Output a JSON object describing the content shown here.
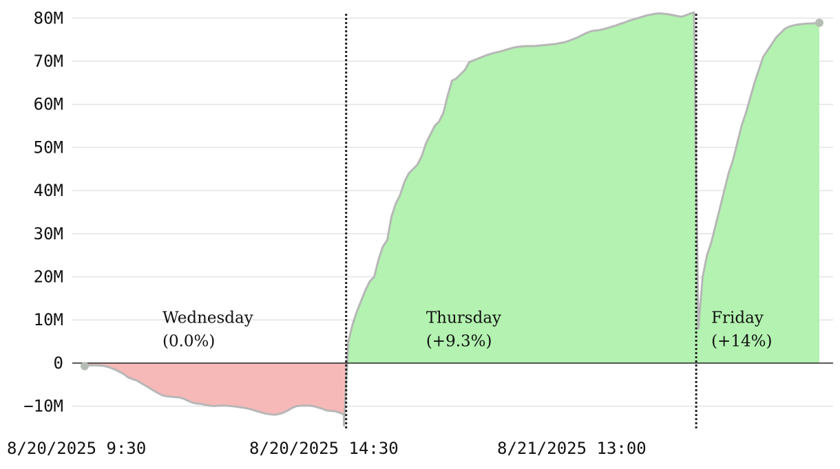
{
  "chart_data": {
    "type": "area",
    "ylim": [
      -15000000,
      81000000
    ],
    "y_ticks": [
      {
        "value": 80000000,
        "label": "80M"
      },
      {
        "value": 70000000,
        "label": "70M"
      },
      {
        "value": 60000000,
        "label": "60M"
      },
      {
        "value": 50000000,
        "label": "50M"
      },
      {
        "value": 40000000,
        "label": "40M"
      },
      {
        "value": 30000000,
        "label": "30M"
      },
      {
        "value": 20000000,
        "label": "20M"
      },
      {
        "value": 10000000,
        "label": "10M"
      },
      {
        "value": 0,
        "label": "0"
      },
      {
        "value": -10000000,
        "label": "−10M"
      }
    ],
    "x_ticks": [
      {
        "index": 0,
        "label": "8/20/2025 9:30"
      },
      {
        "index": 61,
        "label": "8/20/2025 14:30"
      },
      {
        "index": 100,
        "label": "8/21/2025 13:00"
      }
    ],
    "colors": {
      "positive": "#b3f2b0",
      "negative": "#f7b8b8",
      "line": "#b7b7b7",
      "endpoint": "#b4bdb2"
    },
    "segments": [
      {
        "label": "Wednesday",
        "change": "(0.0%)",
        "x": [
          0,
          2,
          3,
          4,
          5,
          6,
          7,
          8,
          9,
          10,
          11,
          12,
          13,
          14,
          15,
          16,
          17,
          18,
          19,
          20,
          21,
          22,
          23,
          24,
          25,
          26,
          27,
          28,
          29,
          30,
          31,
          32,
          33,
          34,
          35,
          36,
          37,
          38,
          39,
          40,
          41,
          42,
          43,
          44,
          45,
          46,
          47,
          48,
          49,
          50,
          51,
          52,
          53,
          54,
          55,
          56,
          57,
          58,
          59,
          60
        ],
        "y": [
          -600000,
          -500000,
          -550000,
          -600000,
          -800000,
          -1100000,
          -1500000,
          -2000000,
          -2500000,
          -3300000,
          -3700000,
          -4000000,
          -4600000,
          -5200000,
          -5800000,
          -6400000,
          -7000000,
          -7500000,
          -7700000,
          -7800000,
          -7900000,
          -8000000,
          -8300000,
          -8800000,
          -9200000,
          -9400000,
          -9500000,
          -9700000,
          -9900000,
          -9950000,
          -9900000,
          -9850000,
          -9900000,
          -10000000,
          -10100000,
          -10250000,
          -10400000,
          -10600000,
          -10900000,
          -11200000,
          -11500000,
          -11750000,
          -11900000,
          -12000000,
          -11800000,
          -11500000,
          -11000000,
          -10400000,
          -10000000,
          -9900000,
          -9850000,
          -9900000,
          -10000000,
          -10300000,
          -10600000,
          -11000000,
          -11100000,
          -11200000,
          -11500000,
          -12000000
        ],
        "label_anchor_x": 18,
        "label_anchor_y": 9000000
      },
      {
        "label": "Thursday",
        "change": "(+9.3%)",
        "x": [
          60,
          61,
          62,
          63,
          64,
          65,
          66,
          67,
          68,
          69,
          70,
          71,
          72,
          73,
          74,
          75,
          76,
          77,
          78,
          79,
          80,
          81,
          82,
          83,
          84,
          85,
          86,
          87,
          88,
          89,
          90,
          91,
          92,
          93,
          94,
          95,
          96,
          97,
          98,
          99,
          100,
          101,
          102,
          103,
          104,
          105,
          106,
          107,
          108,
          109,
          110,
          111,
          112,
          113,
          114,
          115,
          116,
          117,
          118,
          119,
          120,
          121,
          122,
          123,
          124,
          125,
          126,
          127,
          128,
          129,
          130,
          131,
          132,
          133,
          134,
          135,
          136,
          137,
          138,
          139,
          140,
          141
        ],
        "y": [
          -14500000,
          5000000,
          9000000,
          12000000,
          14500000,
          17000000,
          19000000,
          20000000,
          24000000,
          27000000,
          28500000,
          34000000,
          37000000,
          39000000,
          42000000,
          44000000,
          45000000,
          46000000,
          48000000,
          51000000,
          53000000,
          55000000,
          56000000,
          58000000,
          62000000,
          65500000,
          66000000,
          67000000,
          68000000,
          69800000,
          70200000,
          70600000,
          71000000,
          71400000,
          71700000,
          72000000,
          72200000,
          72500000,
          72800000,
          73100000,
          73300000,
          73400000,
          73500000,
          73500000,
          73500000,
          73600000,
          73700000,
          73800000,
          73900000,
          74000000,
          74200000,
          74400000,
          74700000,
          75100000,
          75500000,
          76000000,
          76500000,
          76900000,
          77100000,
          77200000,
          77400000,
          77700000,
          78000000,
          78300000,
          78700000,
          79000000,
          79400000,
          79700000,
          80000000,
          80300000,
          80600000,
          80800000,
          81000000,
          81100000,
          81000000,
          80900000,
          80700000,
          80500000,
          80300000,
          80600000,
          81000000,
          81300000
        ],
        "label_anchor_x": 79,
        "label_anchor_y": 9000000
      },
      {
        "label": "Friday",
        "change": "(+14%)",
        "x": [
          141,
          142,
          143,
          144,
          145,
          146,
          147,
          148,
          149,
          150,
          151,
          152,
          153,
          154,
          155,
          156,
          157,
          158,
          159,
          160,
          161,
          162,
          163,
          164,
          165,
          166,
          167,
          168,
          169,
          170
        ],
        "y": [
          81300000,
          8000000,
          20000000,
          25000000,
          28000000,
          32000000,
          36000000,
          40000000,
          44000000,
          47000000,
          51000000,
          55000000,
          58000000,
          61500000,
          65000000,
          68000000,
          71000000,
          72500000,
          74000000,
          75500000,
          76500000,
          77500000,
          78000000,
          78300000,
          78500000,
          78600000,
          78700000,
          78750000,
          78800000,
          78900000
        ],
        "label_anchor_x": 145,
        "label_anchor_y": 9000000
      }
    ],
    "dividers_at_x": [
      60.5,
      141.5
    ],
    "start_point": {
      "x": 0,
      "y": -700000
    },
    "end_point": {
      "x": 170,
      "y": 78900000
    }
  }
}
